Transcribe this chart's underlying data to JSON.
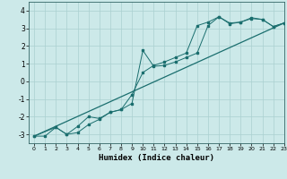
{
  "title": "",
  "xlabel": "Humidex (Indice chaleur)",
  "xlim": [
    -0.5,
    23
  ],
  "ylim": [
    -3.5,
    4.5
  ],
  "xticks": [
    0,
    1,
    2,
    3,
    4,
    5,
    6,
    7,
    8,
    9,
    10,
    11,
    12,
    13,
    14,
    15,
    16,
    17,
    18,
    19,
    20,
    21,
    22,
    23
  ],
  "yticks": [
    -3,
    -2,
    -1,
    0,
    1,
    2,
    3,
    4
  ],
  "bg_color": "#cce9e9",
  "grid_color": "#aad0d0",
  "line_color": "#1a6e6e",
  "line1_x": [
    0,
    1,
    2,
    3,
    4,
    5,
    6,
    7,
    8,
    9,
    10,
    11,
    12,
    13,
    14,
    15,
    16,
    17,
    18,
    19,
    20,
    21,
    22,
    23
  ],
  "line1_y": [
    -3.1,
    -3.1,
    -2.6,
    -3.0,
    -2.9,
    -2.45,
    -2.15,
    -1.75,
    -1.6,
    -1.25,
    1.75,
    0.85,
    0.9,
    1.1,
    1.35,
    1.6,
    3.15,
    3.65,
    3.3,
    3.35,
    3.6,
    3.5,
    3.1,
    3.3
  ],
  "line2_x": [
    0,
    2,
    3,
    4,
    5,
    6,
    7,
    8,
    9,
    10,
    11,
    12,
    13,
    14,
    15,
    16,
    17,
    18,
    19,
    20,
    21,
    22,
    23
  ],
  "line2_y": [
    -3.1,
    -2.6,
    -3.0,
    -2.55,
    -2.0,
    -2.1,
    -1.75,
    -1.6,
    -0.75,
    0.5,
    0.9,
    1.1,
    1.35,
    1.6,
    3.15,
    3.35,
    3.65,
    3.25,
    3.35,
    3.55,
    3.5,
    3.1,
    3.3
  ],
  "line3_x": [
    0,
    23
  ],
  "line3_y": [
    -3.1,
    3.3
  ]
}
